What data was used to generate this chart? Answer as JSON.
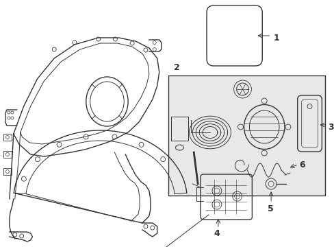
{
  "background_color": "#ffffff",
  "line_color": "#333333",
  "box_fill": "#e8e8e8",
  "fig_width": 4.89,
  "fig_height": 3.6,
  "dpi": 100
}
